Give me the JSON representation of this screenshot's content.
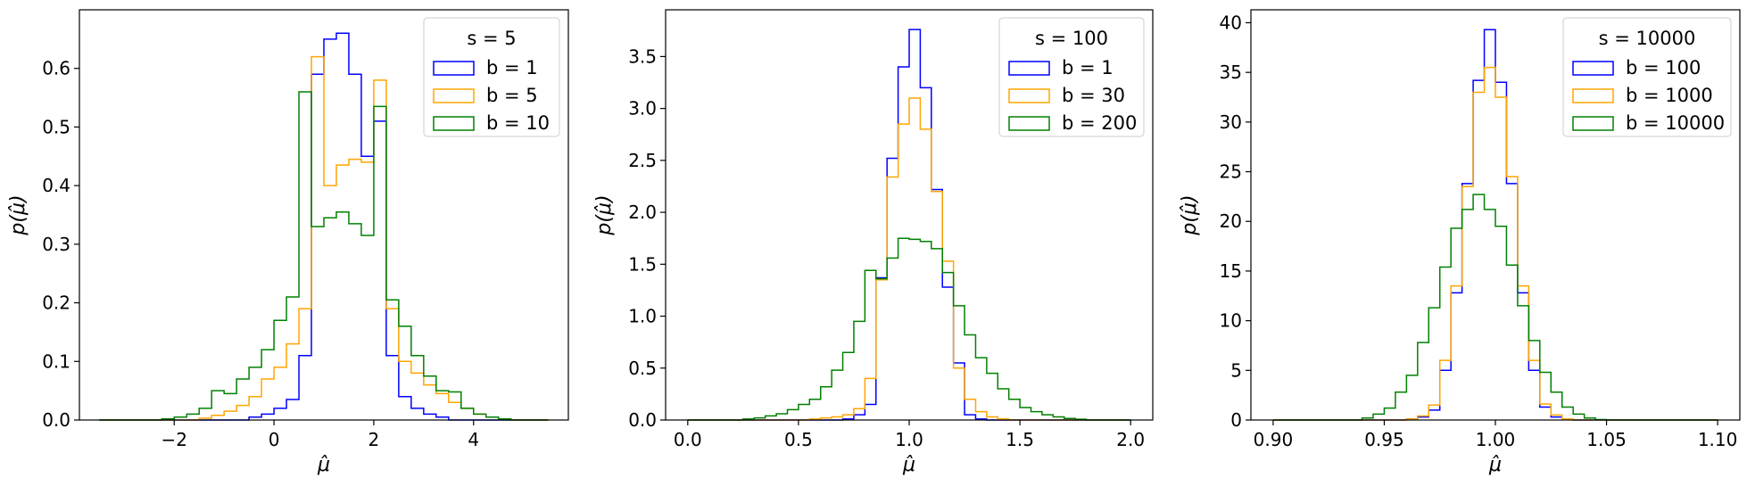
{
  "chart_data": [
    {
      "type": "histogram",
      "xlabel": "μ̂",
      "ylabel": "p(μ̂)",
      "xlim": [
        -3.9,
        5.9
      ],
      "ylim": [
        0,
        0.7
      ],
      "xticks": [
        -2,
        0,
        2,
        4
      ],
      "xtick_labels": [
        "−2",
        "0",
        "2",
        "4"
      ],
      "yticks": [
        0,
        0.1,
        0.2,
        0.3,
        0.4,
        0.5,
        0.6
      ],
      "ytick_labels": [
        "0.0",
        "0.1",
        "0.2",
        "0.3",
        "0.4",
        "0.5",
        "0.6"
      ],
      "bin_edges": [
        -3.5,
        -3.25,
        -3.0,
        -2.75,
        -2.5,
        -2.25,
        -2.0,
        -1.75,
        -1.5,
        -1.25,
        -1.0,
        -0.75,
        -0.5,
        -0.25,
        0.0,
        0.25,
        0.5,
        0.75,
        1.0,
        1.25,
        1.5,
        1.75,
        2.0,
        2.25,
        2.5,
        2.75,
        3.0,
        3.25,
        3.5,
        3.75,
        4.0,
        4.25,
        4.5,
        4.75,
        5.0,
        5.25,
        5.5
      ],
      "legend": {
        "title": "s = 5",
        "location": "upper right"
      },
      "series": [
        {
          "name": "b = 1",
          "color": "#0000ff",
          "values": [
            0,
            0,
            0,
            0,
            0,
            0,
            0,
            0,
            0,
            0,
            0,
            0,
            0.005,
            0.01,
            0.02,
            0.035,
            0.11,
            0.59,
            0.65,
            0.66,
            0.59,
            0.45,
            0.51,
            0.11,
            0.04,
            0.02,
            0.01,
            0.005,
            0,
            0,
            0,
            0,
            0,
            0,
            0,
            0
          ]
        },
        {
          "name": "b = 5",
          "color": "#ffa500",
          "values": [
            0,
            0,
            0,
            0,
            0,
            0,
            0,
            0,
            0.003,
            0.008,
            0.015,
            0.025,
            0.04,
            0.07,
            0.09,
            0.13,
            0.19,
            0.62,
            0.4,
            0.435,
            0.445,
            0.44,
            0.58,
            0.19,
            0.1,
            0.08,
            0.06,
            0.045,
            0.03,
            0.02,
            0.01,
            0.005,
            0.002,
            0,
            0,
            0
          ]
        },
        {
          "name": "b = 10",
          "color": "#008000",
          "values": [
            0,
            0,
            0,
            0,
            0,
            0.002,
            0.005,
            0.01,
            0.02,
            0.05,
            0.045,
            0.07,
            0.09,
            0.12,
            0.17,
            0.21,
            0.56,
            0.33,
            0.345,
            0.355,
            0.335,
            0.315,
            0.535,
            0.205,
            0.16,
            0.11,
            0.075,
            0.05,
            0.048,
            0.02,
            0.01,
            0.005,
            0.002,
            0,
            0,
            0
          ]
        }
      ]
    },
    {
      "type": "histogram",
      "xlabel": "μ̂",
      "ylabel": "p(μ̂)",
      "xlim": [
        -0.1,
        2.1
      ],
      "ylim": [
        0,
        3.95
      ],
      "xticks": [
        0.0,
        0.5,
        1.0,
        1.5,
        2.0
      ],
      "xtick_labels": [
        "0.0",
        "0.5",
        "1.0",
        "1.5",
        "2.0"
      ],
      "yticks": [
        0,
        0.5,
        1.0,
        1.5,
        2.0,
        2.5,
        3.0,
        3.5
      ],
      "ytick_labels": [
        "0.0",
        "0.5",
        "1.0",
        "1.5",
        "2.0",
        "2.5",
        "3.0",
        "3.5"
      ],
      "bin_edges": [
        0.0,
        0.05,
        0.1,
        0.15,
        0.2,
        0.25,
        0.3,
        0.35,
        0.4,
        0.45,
        0.5,
        0.55,
        0.6,
        0.65,
        0.7,
        0.75,
        0.8,
        0.85,
        0.9,
        0.95,
        1.0,
        1.05,
        1.1,
        1.15,
        1.2,
        1.25,
        1.3,
        1.35,
        1.4,
        1.45,
        1.5,
        1.55,
        1.6,
        1.65,
        1.7,
        1.75,
        1.8,
        1.85,
        1.9,
        1.95,
        2.0
      ],
      "legend": {
        "title": "s = 100",
        "location": "upper right"
      },
      "series": [
        {
          "name": "b = 1",
          "color": "#0000ff",
          "values": [
            0,
            0,
            0,
            0,
            0,
            0,
            0,
            0,
            0,
            0,
            0,
            0,
            0,
            0,
            0.01,
            0.05,
            0.15,
            1.37,
            2.52,
            3.4,
            3.76,
            3.2,
            2.22,
            1.28,
            0.55,
            0.05,
            0.01,
            0,
            0,
            0,
            0,
            0,
            0,
            0,
            0,
            0,
            0,
            0,
            0,
            0
          ]
        },
        {
          "name": "b = 30",
          "color": "#ffa500",
          "values": [
            0,
            0,
            0,
            0,
            0,
            0,
            0,
            0,
            0,
            0,
            0,
            0.01,
            0.02,
            0.03,
            0.05,
            0.11,
            0.4,
            1.35,
            2.34,
            2.85,
            3.1,
            2.8,
            2.2,
            1.53,
            0.5,
            0.2,
            0.08,
            0.03,
            0.01,
            0,
            0,
            0,
            0,
            0,
            0,
            0,
            0,
            0,
            0,
            0
          ]
        },
        {
          "name": "b = 200",
          "color": "#008000",
          "values": [
            0,
            0,
            0,
            0,
            0,
            0.01,
            0.02,
            0.04,
            0.06,
            0.1,
            0.15,
            0.2,
            0.32,
            0.48,
            0.65,
            0.95,
            1.44,
            1.36,
            1.56,
            1.75,
            1.74,
            1.72,
            1.65,
            1.42,
            1.1,
            0.82,
            0.6,
            0.45,
            0.3,
            0.2,
            0.12,
            0.08,
            0.05,
            0.03,
            0.015,
            0.007,
            0,
            0,
            0,
            0
          ]
        }
      ]
    },
    {
      "type": "histogram",
      "xlabel": "μ̂",
      "ylabel": "p(μ̂)",
      "xlim": [
        0.89,
        1.11
      ],
      "ylim": [
        0,
        41.3
      ],
      "xticks": [
        0.9,
        0.95,
        1.0,
        1.05,
        1.1
      ],
      "xtick_labels": [
        "0.90",
        "0.95",
        "1.00",
        "1.05",
        "1.10"
      ],
      "yticks": [
        0,
        5,
        10,
        15,
        20,
        25,
        30,
        35,
        40
      ],
      "ytick_labels": [
        "0",
        "5",
        "10",
        "15",
        "20",
        "25",
        "30",
        "35",
        "40"
      ],
      "bin_edges": [
        0.9,
        0.905,
        0.91,
        0.915,
        0.92,
        0.925,
        0.93,
        0.935,
        0.94,
        0.945,
        0.95,
        0.955,
        0.96,
        0.965,
        0.97,
        0.975,
        0.98,
        0.985,
        0.99,
        0.995,
        1.0,
        1.005,
        1.01,
        1.015,
        1.02,
        1.025,
        1.03,
        1.035,
        1.04,
        1.045,
        1.05,
        1.055,
        1.06,
        1.065,
        1.07,
        1.075,
        1.08,
        1.085,
        1.09,
        1.095,
        1.1
      ],
      "legend": {
        "title": "s = 10000",
        "location": "upper right"
      },
      "series": [
        {
          "name": "b = 100",
          "color": "#0000ff",
          "values": [
            0,
            0,
            0,
            0,
            0,
            0,
            0,
            0,
            0,
            0,
            0,
            0,
            0.1,
            0.3,
            1.0,
            5.0,
            12.8,
            23.8,
            34.2,
            39.3,
            34.0,
            23.8,
            12.8,
            5.0,
            1.3,
            0.3,
            0.05,
            0,
            0,
            0,
            0,
            0,
            0,
            0,
            0,
            0,
            0,
            0,
            0,
            0
          ]
        },
        {
          "name": "b = 1000",
          "color": "#ffa500",
          "values": [
            0,
            0,
            0,
            0,
            0,
            0,
            0,
            0,
            0,
            0,
            0,
            0,
            0.1,
            0.4,
            1.5,
            6.0,
            13.5,
            23.5,
            33.0,
            35.5,
            32.5,
            24.5,
            13.5,
            6.0,
            1.6,
            0.5,
            0.1,
            0,
            0,
            0,
            0,
            0,
            0,
            0,
            0,
            0,
            0,
            0,
            0,
            0
          ]
        },
        {
          "name": "b = 10000",
          "color": "#008000",
          "values": [
            0,
            0,
            0,
            0,
            0,
            0,
            0,
            0,
            0.2,
            0.6,
            1.2,
            2.8,
            4.5,
            7.8,
            11.3,
            15.4,
            19.3,
            21.2,
            22.7,
            21.2,
            19.5,
            15.6,
            11.5,
            8.0,
            4.8,
            2.8,
            1.3,
            0.6,
            0.2,
            0.05,
            0,
            0,
            0,
            0,
            0,
            0,
            0,
            0,
            0,
            0
          ]
        }
      ]
    }
  ]
}
